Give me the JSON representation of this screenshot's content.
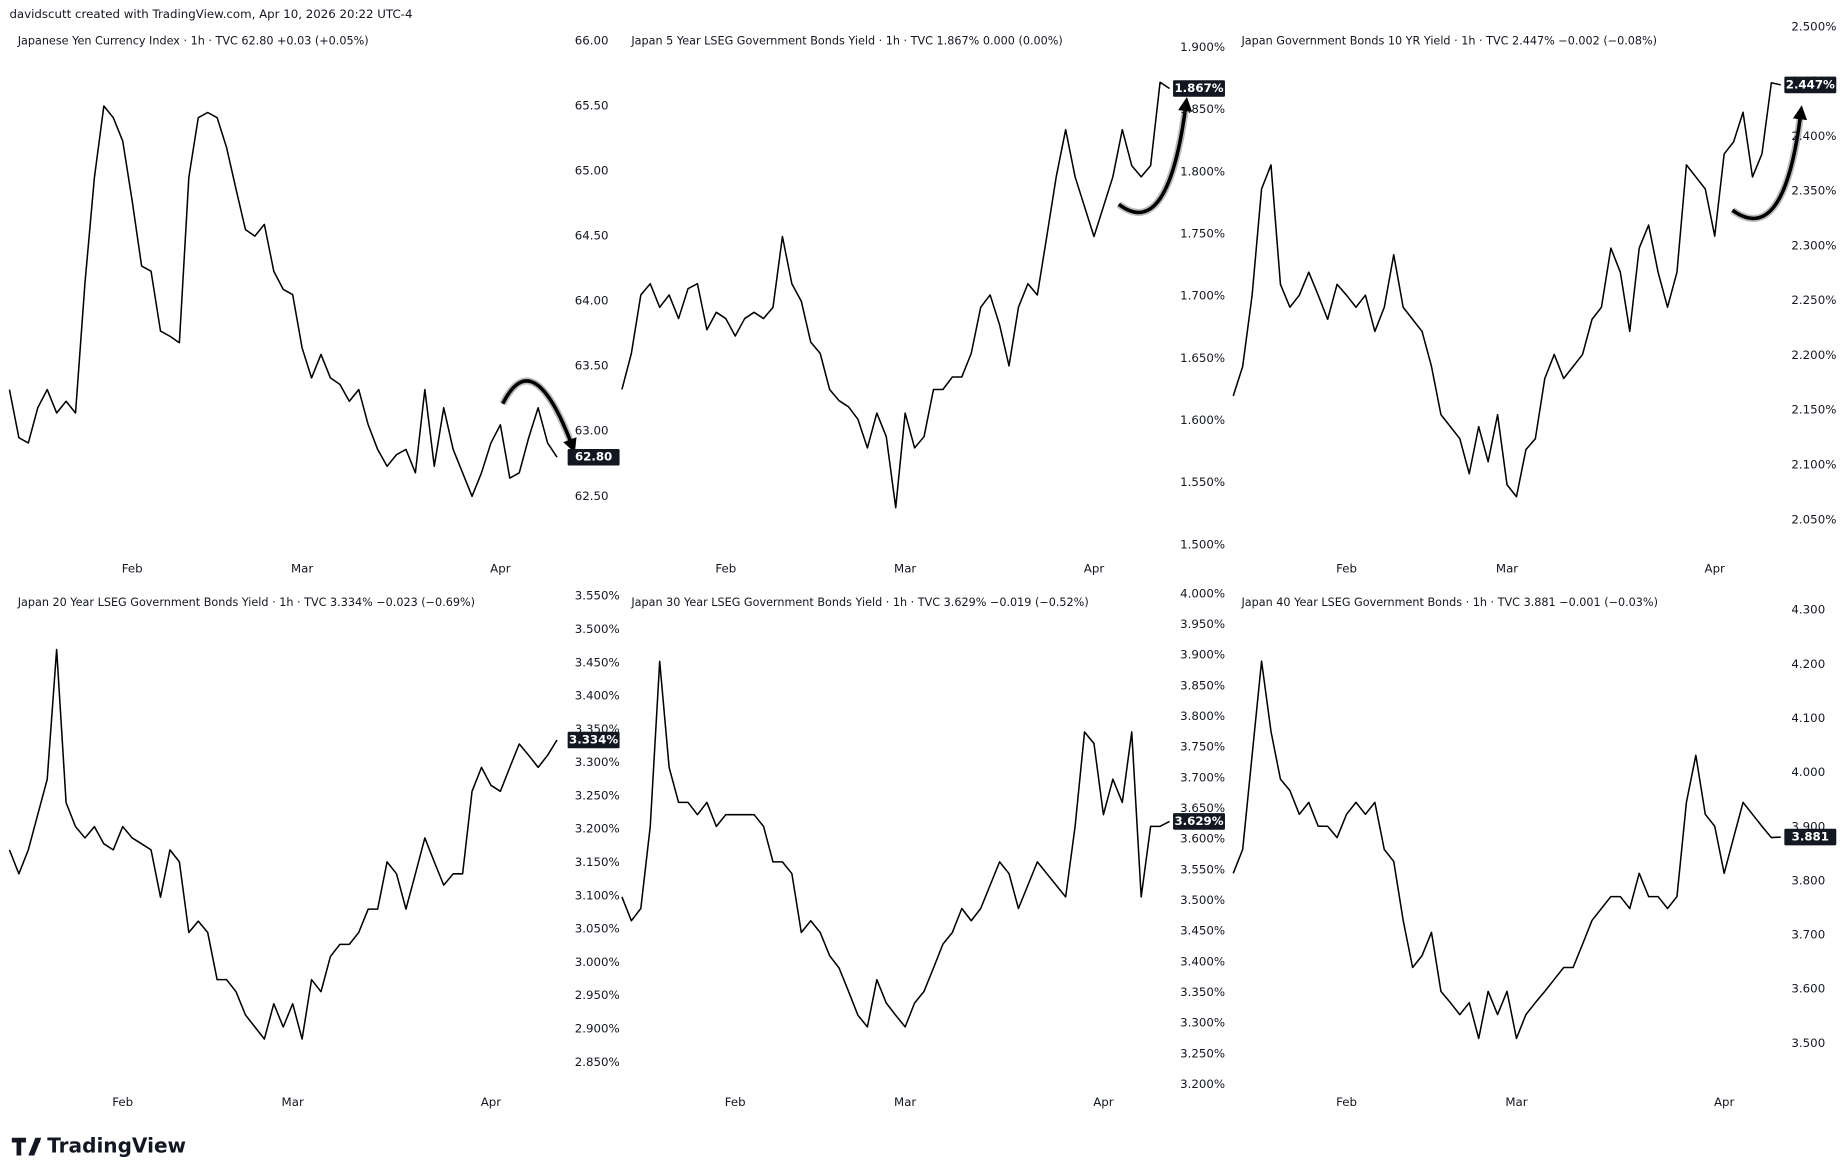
{
  "header": "davidscutt created with TradingView.com, Apr 10, 2026 20:22 UTC-4",
  "footer_logo": "TradingView",
  "chart_data": [
    {
      "type": "line",
      "title": "Japanese Yen Currency Index · 1h · TVC  62.80  +0.03 (+0.05%)",
      "color": "#000000",
      "categories": [
        null,
        null,
        null,
        null,
        null,
        null,
        null,
        null,
        null,
        null,
        null,
        null,
        null,
        "Feb",
        null,
        null,
        null,
        null,
        null,
        null,
        null,
        null,
        null,
        null,
        null,
        null,
        null,
        null,
        null,
        null,
        null,
        "Mar",
        null,
        null,
        null,
        null,
        null,
        null,
        null,
        null,
        null,
        null,
        null,
        null,
        null,
        null,
        null,
        null,
        null,
        null,
        null,
        null,
        "Apr",
        null,
        null,
        null,
        null,
        null,
        null
      ],
      "values": [
        63.32,
        62.95,
        62.91,
        63.18,
        63.32,
        63.14,
        63.23,
        63.14,
        64.14,
        64.95,
        65.5,
        65.41,
        65.23,
        64.77,
        64.27,
        64.23,
        63.77,
        63.73,
        63.68,
        64.95,
        65.41,
        65.45,
        65.41,
        65.18,
        64.86,
        64.55,
        64.5,
        64.59,
        64.23,
        64.09,
        64.05,
        63.64,
        63.41,
        63.59,
        63.41,
        63.36,
        63.23,
        63.32,
        63.05,
        62.86,
        62.73,
        62.82,
        62.86,
        62.68,
        63.32,
        62.73,
        63.18,
        62.86,
        62.68,
        62.5,
        62.68,
        62.91,
        63.05,
        62.64,
        62.68,
        62.95,
        63.18,
        62.91,
        62.8
      ],
      "last_label": "62.80",
      "ylim": [
        62.05,
        66.15
      ],
      "yticks": [
        {
          "value": 62.5,
          "label": "62.50"
        },
        {
          "value": 63,
          "label": "63.00"
        },
        {
          "value": 63.5,
          "label": "63.50"
        },
        {
          "value": 64,
          "label": "64.00"
        },
        {
          "value": 64.5,
          "label": "64.50"
        },
        {
          "value": 65,
          "label": "65.00"
        },
        {
          "value": 65.5,
          "label": "65.50"
        },
        {
          "value": 66,
          "label": "66.00"
        }
      ]
    },
    {
      "type": "line",
      "title": "Japan 5 Year LSEG Government Bonds Yield · 1h · TVC  1.867%  0.000 (0.00%)",
      "color": "#000000",
      "categories": [
        null,
        null,
        null,
        null,
        null,
        null,
        null,
        null,
        null,
        null,
        null,
        "Feb",
        null,
        null,
        null,
        null,
        null,
        null,
        null,
        null,
        null,
        null,
        null,
        null,
        null,
        null,
        null,
        null,
        null,
        null,
        "Mar",
        null,
        null,
        null,
        null,
        null,
        null,
        null,
        null,
        null,
        null,
        null,
        null,
        null,
        null,
        null,
        null,
        null,
        null,
        null,
        "Apr",
        null,
        null,
        null,
        null,
        null,
        null,
        null,
        null
      ],
      "values": [
        1.625,
        1.654,
        1.701,
        1.71,
        1.691,
        1.701,
        1.682,
        1.706,
        1.71,
        1.673,
        1.687,
        1.682,
        1.668,
        1.682,
        1.687,
        1.682,
        1.691,
        1.748,
        1.71,
        1.696,
        1.663,
        1.654,
        1.625,
        1.616,
        1.611,
        1.601,
        1.578,
        1.606,
        1.587,
        1.53,
        1.606,
        1.578,
        1.587,
        1.625,
        1.625,
        1.635,
        1.635,
        1.654,
        1.691,
        1.701,
        1.677,
        1.644,
        1.691,
        1.71,
        1.701,
        1.748,
        1.796,
        1.834,
        1.796,
        1.772,
        1.748,
        1.772,
        1.796,
        1.834,
        1.805,
        1.796,
        1.805,
        1.872,
        1.867
      ],
      "last_label": "1.867%",
      "ylim": [
        1.492,
        1.921
      ],
      "yticks": [
        {
          "value": 1.5,
          "label": "1.500%"
        },
        {
          "value": 1.55,
          "label": "1.550%"
        },
        {
          "value": 1.6,
          "label": "1.600%"
        },
        {
          "value": 1.65,
          "label": "1.650%"
        },
        {
          "value": 1.7,
          "label": "1.700%"
        },
        {
          "value": 1.75,
          "label": "1.750%"
        },
        {
          "value": 1.8,
          "label": "1.800%"
        },
        {
          "value": 1.85,
          "label": "1.850%"
        },
        {
          "value": 1.9,
          "label": "1.900%"
        }
      ]
    },
    {
      "type": "line",
      "title": "Japan Government Bonds 10 YR Yield · 1h · TVC  2.447%  −0.002 (−0.08%)",
      "color": "#000000",
      "categories": [
        null,
        null,
        null,
        null,
        null,
        null,
        null,
        null,
        null,
        null,
        null,
        null,
        "Feb",
        null,
        null,
        null,
        null,
        null,
        null,
        null,
        null,
        null,
        null,
        null,
        null,
        null,
        null,
        null,
        null,
        "Mar",
        null,
        null,
        null,
        null,
        null,
        null,
        null,
        null,
        null,
        null,
        null,
        null,
        null,
        null,
        null,
        null,
        null,
        null,
        null,
        null,
        null,
        "Apr",
        null,
        null,
        null,
        null,
        null,
        null,
        null
      ],
      "values": [
        2.163,
        2.19,
        2.255,
        2.352,
        2.374,
        2.265,
        2.244,
        2.255,
        2.276,
        2.255,
        2.233,
        2.265,
        2.255,
        2.244,
        2.255,
        2.222,
        2.244,
        2.292,
        2.244,
        2.233,
        2.222,
        2.19,
        2.146,
        2.135,
        2.124,
        2.092,
        2.135,
        2.103,
        2.146,
        2.082,
        2.071,
        2.114,
        2.124,
        2.179,
        2.201,
        2.179,
        2.19,
        2.201,
        2.233,
        2.244,
        2.298,
        2.276,
        2.222,
        2.298,
        2.319,
        2.276,
        2.244,
        2.276,
        2.374,
        2.363,
        2.352,
        2.309,
        2.384,
        2.395,
        2.422,
        2.363,
        2.384,
        2.449,
        2.447
      ],
      "last_label": "2.447%",
      "ylim": [
        2.018,
        2.505
      ],
      "yticks": [
        {
          "value": 2.05,
          "label": "2.050%"
        },
        {
          "value": 2.1,
          "label": "2.100%"
        },
        {
          "value": 2.15,
          "label": "2.150%"
        },
        {
          "value": 2.2,
          "label": "2.200%"
        },
        {
          "value": 2.25,
          "label": "2.250%"
        },
        {
          "value": 2.3,
          "label": "2.300%"
        },
        {
          "value": 2.35,
          "label": "2.350%"
        },
        {
          "value": 2.4,
          "label": "2.400%"
        },
        {
          "value": 2.45,
          "label": "2.450%"
        },
        {
          "value": 2.5,
          "label": "2.500%"
        }
      ]
    },
    {
      "type": "line",
      "title": "Japan 20 Year LSEG Government Bonds Yield · 1h · TVC  3.334%  −0.023 (−0.69%)",
      "color": "#000000",
      "categories": [
        null,
        null,
        null,
        null,
        null,
        null,
        null,
        null,
        null,
        null,
        null,
        null,
        "Feb",
        null,
        null,
        null,
        null,
        null,
        null,
        null,
        null,
        null,
        null,
        null,
        null,
        null,
        null,
        null,
        null,
        null,
        "Mar",
        null,
        null,
        null,
        null,
        null,
        null,
        null,
        null,
        null,
        null,
        null,
        null,
        null,
        null,
        null,
        null,
        null,
        null,
        null,
        null,
        "Apr",
        null,
        null,
        null,
        null,
        null,
        null,
        null
      ],
      "values": [
        3.169,
        3.133,
        3.169,
        3.222,
        3.275,
        3.47,
        3.24,
        3.204,
        3.187,
        3.204,
        3.178,
        3.169,
        3.204,
        3.187,
        3.178,
        3.169,
        3.098,
        3.169,
        3.151,
        3.045,
        3.062,
        3.045,
        2.974,
        2.974,
        2.956,
        2.921,
        2.903,
        2.885,
        2.938,
        2.903,
        2.938,
        2.885,
        2.974,
        2.956,
        3.009,
        3.027,
        3.027,
        3.045,
        3.08,
        3.08,
        3.151,
        3.133,
        3.08,
        3.133,
        3.187,
        3.151,
        3.116,
        3.133,
        3.133,
        3.257,
        3.293,
        3.266,
        3.257,
        3.293,
        3.328,
        3.311,
        3.293,
        3.311,
        3.334
      ],
      "last_label": "3.334%",
      "ylim": [
        2.811,
        3.559
      ],
      "yticks": [
        {
          "value": 2.85,
          "label": "2.850%"
        },
        {
          "value": 2.9,
          "label": "2.900%"
        },
        {
          "value": 2.95,
          "label": "2.950%"
        },
        {
          "value": 3,
          "label": "3.000%"
        },
        {
          "value": 3.05,
          "label": "3.050%"
        },
        {
          "value": 3.1,
          "label": "3.100%"
        },
        {
          "value": 3.15,
          "label": "3.150%"
        },
        {
          "value": 3.2,
          "label": "3.200%"
        },
        {
          "value": 3.25,
          "label": "3.250%"
        },
        {
          "value": 3.3,
          "label": "3.300%"
        },
        {
          "value": 3.35,
          "label": "3.350%"
        },
        {
          "value": 3.4,
          "label": "3.400%"
        },
        {
          "value": 3.45,
          "label": "3.450%"
        },
        {
          "value": 3.5,
          "label": "3.500%"
        },
        {
          "value": 3.55,
          "label": "3.550%"
        }
      ]
    },
    {
      "type": "line",
      "title": "Japan 30 Year LSEG Government Bonds Yield · 1h · TVC  3.629%  −0.019 (−0.52%)",
      "color": "#000000",
      "categories": [
        null,
        null,
        null,
        null,
        null,
        null,
        null,
        null,
        null,
        null,
        null,
        null,
        "Feb",
        null,
        null,
        null,
        null,
        null,
        null,
        null,
        null,
        null,
        null,
        null,
        null,
        null,
        null,
        null,
        null,
        null,
        "Mar",
        null,
        null,
        null,
        null,
        null,
        null,
        null,
        null,
        null,
        null,
        null,
        null,
        null,
        null,
        null,
        null,
        null,
        null,
        null,
        null,
        "Apr",
        null,
        null,
        null,
        null,
        null,
        null,
        null
      ],
      "values": [
        3.506,
        3.467,
        3.487,
        3.621,
        3.89,
        3.717,
        3.66,
        3.66,
        3.64,
        3.66,
        3.621,
        3.64,
        3.64,
        3.64,
        3.64,
        3.621,
        3.563,
        3.563,
        3.544,
        3.448,
        3.467,
        3.448,
        3.41,
        3.39,
        3.352,
        3.313,
        3.294,
        3.371,
        3.333,
        3.313,
        3.294,
        3.333,
        3.352,
        3.39,
        3.429,
        3.448,
        3.487,
        3.467,
        3.487,
        3.525,
        3.563,
        3.544,
        3.487,
        3.525,
        3.563,
        3.544,
        3.525,
        3.506,
        3.621,
        3.775,
        3.756,
        3.64,
        3.698,
        3.66,
        3.775,
        3.506,
        3.621,
        3.621,
        3.629
      ],
      "last_label": "3.629%",
      "ylim": [
        3.194,
        4.006
      ],
      "yticks": [
        {
          "value": 3.2,
          "label": "3.200%"
        },
        {
          "value": 3.25,
          "label": "3.250%"
        },
        {
          "value": 3.3,
          "label": "3.300%"
        },
        {
          "value": 3.35,
          "label": "3.350%"
        },
        {
          "value": 3.4,
          "label": "3.400%"
        },
        {
          "value": 3.45,
          "label": "3.450%"
        },
        {
          "value": 3.5,
          "label": "3.500%"
        },
        {
          "value": 3.55,
          "label": "3.550%"
        },
        {
          "value": 3.6,
          "label": "3.600%"
        },
        {
          "value": 3.65,
          "label": "3.650%"
        },
        {
          "value": 3.7,
          "label": "3.700%"
        },
        {
          "value": 3.75,
          "label": "3.750%"
        },
        {
          "value": 3.8,
          "label": "3.800%"
        },
        {
          "value": 3.85,
          "label": "3.850%"
        },
        {
          "value": 3.9,
          "label": "3.900%"
        },
        {
          "value": 3.95,
          "label": "3.950%"
        },
        {
          "value": 4,
          "label": "4.000%"
        }
      ]
    },
    {
      "type": "line",
      "title": "Japan 40 Year LSEG Government Bonds · 1h · TVC  3.881  −0.001 (−0.03%)",
      "color": "#000000",
      "categories": [
        null,
        null,
        null,
        null,
        null,
        null,
        null,
        null,
        null,
        null,
        null,
        null,
        "Feb",
        null,
        null,
        null,
        null,
        null,
        null,
        null,
        null,
        null,
        null,
        null,
        null,
        null,
        null,
        null,
        null,
        null,
        "Mar",
        null,
        null,
        null,
        null,
        null,
        null,
        null,
        null,
        null,
        null,
        null,
        null,
        null,
        null,
        null,
        null,
        null,
        null,
        null,
        null,
        null,
        "Apr",
        null,
        null,
        null,
        null,
        null,
        null
      ],
      "values": [
        3.814,
        3.858,
        4.032,
        4.206,
        4.076,
        3.988,
        3.967,
        3.923,
        3.945,
        3.901,
        3.901,
        3.88,
        3.923,
        3.945,
        3.923,
        3.945,
        3.858,
        3.836,
        3.727,
        3.64,
        3.662,
        3.705,
        3.596,
        3.575,
        3.553,
        3.575,
        3.509,
        3.596,
        3.553,
        3.596,
        3.509,
        3.553,
        3.575,
        3.596,
        3.618,
        3.64,
        3.64,
        3.683,
        3.727,
        3.749,
        3.771,
        3.771,
        3.749,
        3.814,
        3.771,
        3.771,
        3.749,
        3.771,
        3.945,
        4.032,
        3.923,
        3.901,
        3.814,
        3.88,
        3.945,
        3.923,
        3.901,
        3.88,
        3.881
      ],
      "last_label": "3.881",
      "ylim": [
        3.417,
        4.337
      ],
      "yticks": [
        {
          "value": 3.5,
          "label": "3.500"
        },
        {
          "value": 3.6,
          "label": "3.600"
        },
        {
          "value": 3.7,
          "label": "3.700"
        },
        {
          "value": 3.8,
          "label": "3.800"
        },
        {
          "value": 3.9,
          "label": "3.900"
        },
        {
          "value": 4,
          "label": "4.000"
        },
        {
          "value": 4.1,
          "label": "4.100"
        },
        {
          "value": 4.2,
          "label": "4.200"
        },
        {
          "value": 4.3,
          "label": "4.300"
        }
      ]
    }
  ]
}
